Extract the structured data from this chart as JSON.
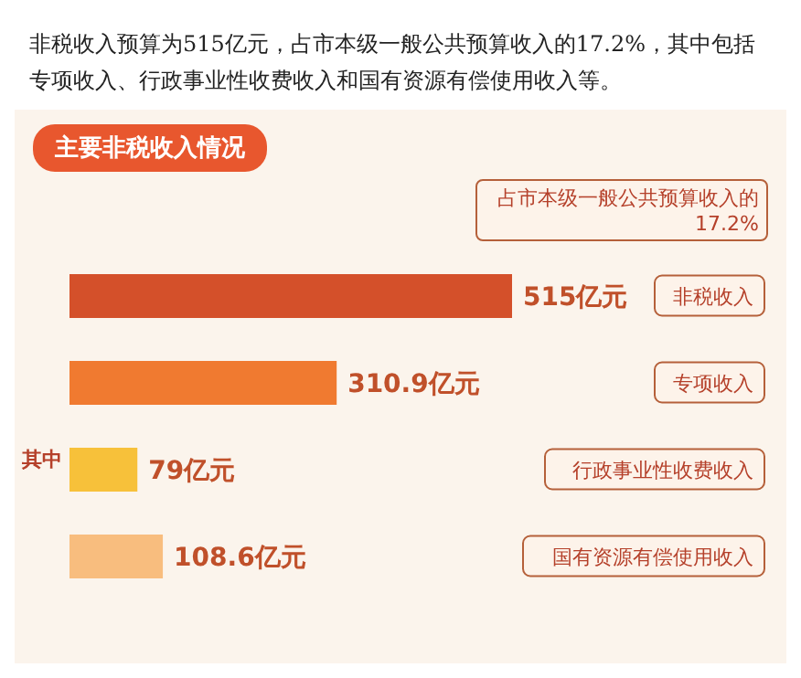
{
  "chart_data": {
    "type": "bar",
    "orientation": "horizontal",
    "title": "主要非税收入情况",
    "subtitle": "非税收入预算为515亿元，占市本级一般公共预算收入的17.2%，其中包括专项收入、行政事业性收费收入和国有资源有偿使用收入等。",
    "categories": [
      "非税收入",
      "专项收入",
      "行政事业性收费收入",
      "国有资源有偿使用收入"
    ],
    "values": [
      515,
      310.9,
      79,
      108.6
    ],
    "colors": [
      "#d4502a",
      "#f07a30",
      "#f7c13a",
      "#f8bd7e"
    ],
    "value_labels": [
      "515亿元",
      "310.9亿元",
      "79亿元",
      "108.6亿元"
    ],
    "annotations": [
      "占市本级一般公共预算收入的17.2%",
      "其中"
    ]
  }
}
